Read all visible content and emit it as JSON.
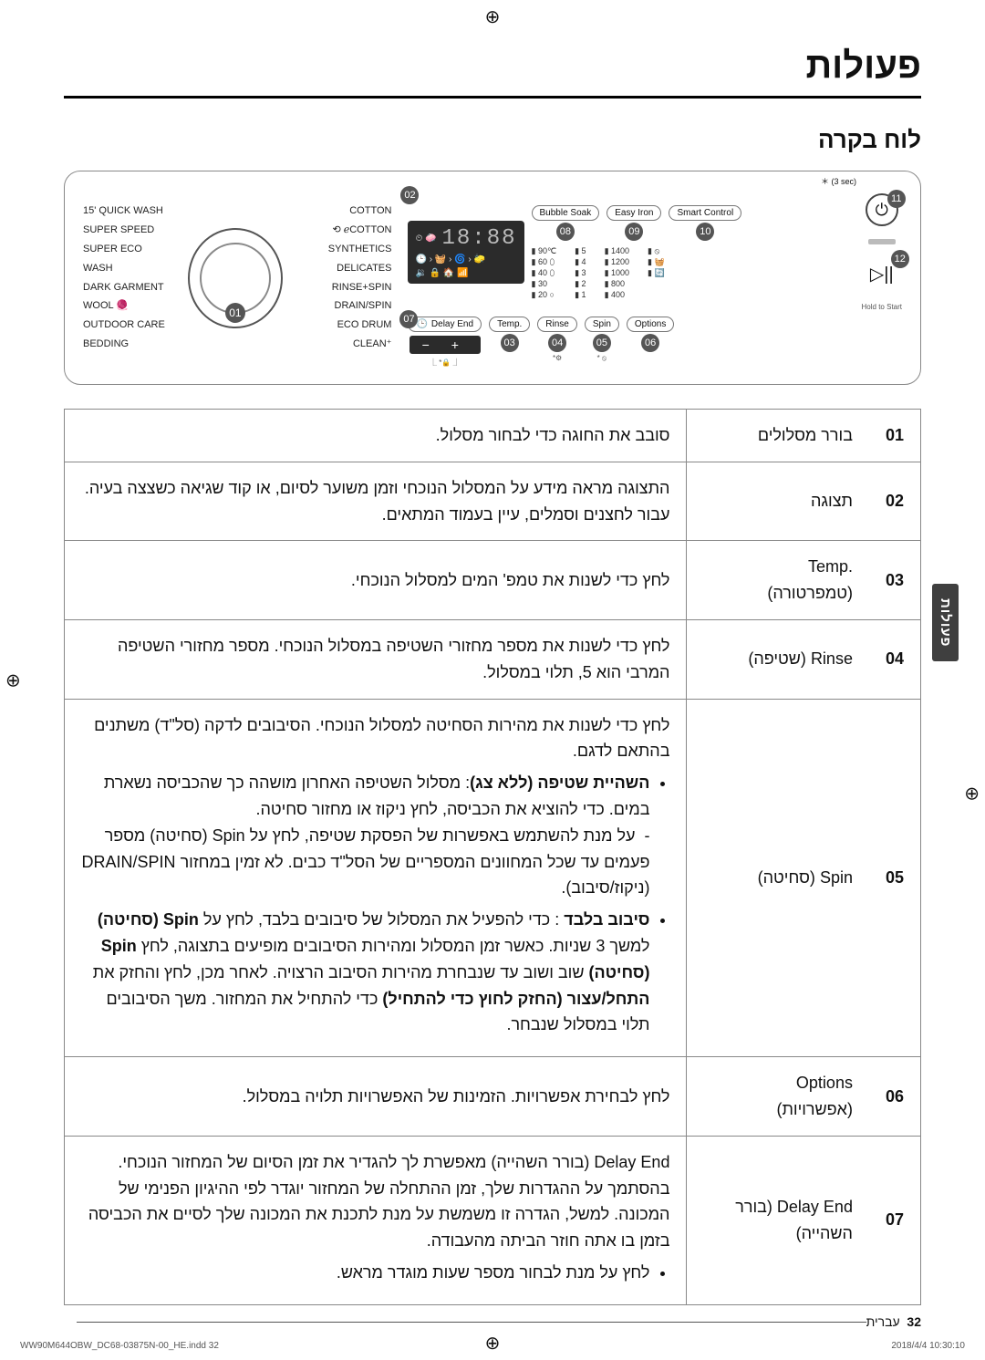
{
  "page": {
    "title": "פעולות",
    "section": "לוח בקרה",
    "side_tab": "פעולות",
    "footer_page": "32",
    "footer_lang": "עברית",
    "foot_file": "WW90M644OBW_DC68-03875N-00_HE.indd   32",
    "foot_date": "2018/4/4   10:30:10"
  },
  "panel": {
    "star_note": "＊ (3 sec)",
    "dial_badge": "01",
    "left_items": [
      "15' QUICK WASH",
      "SUPER SPEED",
      "SUPER ECO WASH",
      "DARK GARMENT",
      "WOOL 🧶",
      "OUTDOOR CARE",
      "BEDDING"
    ],
    "right_items": [
      "COTTON",
      "⟲ ℯCOTTON",
      "SYNTHETICS",
      "DELICATES",
      "RINSE+SPIN",
      "DRAIN/SPIN",
      "ECO DRUM CLEAN⁺"
    ],
    "screen_icons": "⏲ 🧼",
    "screen_time": "18:88",
    "screen_row2": "🕒 › 🧺 › 🌀 › 🧽",
    "screen_row3": "🔉 🔒 🏠 📶",
    "top_pills": [
      {
        "text": "Bubble Soak"
      },
      {
        "text": "Easy Iron"
      },
      {
        "text": "Smart Control"
      }
    ],
    "top_badges": [
      "08",
      "09",
      "10"
    ],
    "grid": {
      "c1": [
        "90℃",
        "60 ⬯",
        "40 ⬯",
        "30",
        "20 ○"
      ],
      "c2": [
        "5",
        "4",
        "3",
        "2",
        "1"
      ],
      "c3": [
        "1400",
        "1200",
        "1000",
        "800",
        "400"
      ],
      "c4": [
        "⦸",
        "🧺",
        "🔄"
      ]
    },
    "delay": {
      "label": "Delay End",
      "badge": "07",
      "pm": "− +"
    },
    "bottom_pills": [
      {
        "text": "Temp.",
        "badge": "03"
      },
      {
        "text": "Rinse",
        "badge": "04"
      },
      {
        "text": "Spin",
        "badge": "05"
      },
      {
        "text": "Options",
        "badge": "06"
      }
    ],
    "power_badge": "11",
    "play_badge": "12",
    "hold_label": "Hold to Start",
    "lock_note": "⎿ *🔒 ⏌",
    "spin_note": "* ⦸"
  },
  "table": [
    {
      "num": "01",
      "label": "בורר מסלולים",
      "desc_html": "סובב את החוגה כדי לבחור מסלול."
    },
    {
      "num": "02",
      "label": "תצוגה",
      "desc_html": "התצוגה מראה מידע על המסלול הנוכחי וזמן משוער לסיום, או קוד שגיאה כשצצה בעיה.<br>עבור לחצנים וסמלים, עיין בעמוד המתאים."
    },
    {
      "num": "03",
      "label": "<span class='en'>Temp.</span><br>(טמפרטורה)",
      "desc_html": "לחץ כדי לשנות את טמפ' המים למסלול הנוכחי."
    },
    {
      "num": "04",
      "label": "<span class='en'>Rinse</span> (שטיפה)",
      "desc_html": "לחץ כדי לשנות את מספר מחזורי השטיפה במסלול הנוכחי. מספר מחזורי השטיפה המרבי הוא 5, תלוי במסלול."
    },
    {
      "num": "05",
      "label": "<span class='en'>Spin</span> (סחיטה)",
      "desc_html": "לחץ כדי לשנות את מהירות הסחיטה למסלול הנוכחי. הסיבובים לדקה (סל\"ד) משתנים בהתאם לדגם.<ul><li><span class='bold'>השהיית שטיפה (ללא צג)</span>: מסלול השטיפה האחרון מושהה כך שהכביסה נשארת במים. כדי להוציא את הכביסה, לחץ ניקוז או מחזור סחיטה.<br>- &nbsp;על מנת להשתמש באפשרות של הפסקת שטיפה, לחץ על Spin (סחיטה) מספר פעמים עד שכל המחוונים המספריים של הסל\"ד כבים. לא זמין במחזור DRAIN/SPIN (ניקוז/סיבוב).</li><li><span class='bold'>סיבוב בלבד</span> : כדי להפעיל את המסלול של סיבובים בלבד, לחץ על <span class='bold'>Spin (סחיטה)</span> למשך 3 שניות. כאשר זמן המסלול ומהירות הסיבובים מופיעים בתצוגה, לחץ <span class='bold'>Spin (סחיטה)</span> שוב ושוב עד שנבחרת מהירות הסיבוב הרצויה. לאחר מכן, לחץ והחזק את <span class='bold'>התחל/עצור (החזק לחוץ כדי להתחיל)</span> כדי להתחיל את המחזור. משך הסיבובים תלוי במסלול שנבחר.</li></ul>"
    },
    {
      "num": "06",
      "label": "<span class='en'>Options</span><br>(אפשרויות)",
      "desc_html": "לחץ לבחירת אפשרויות. הזמינות של האפשרויות תלויה במסלול."
    },
    {
      "num": "07",
      "label": "<span class='en'>Delay End</span> (בורר השהייה)",
      "desc_html": "Delay End (בורר השהייה) מאפשרת לך להגדיר את זמן הסיום של המחזור הנוכחי. בהסתמך על ההגדרות שלך, זמן ההתחלה של המחזור יוגדר לפי ההיגיון הפנימי של המכונה. למשל, הגדרה זו משמשת על מנת לתכנת את המכונה שלך לסיים את הכביסה בזמן בו אתה חוזר הביתה מהעבודה.<ul><li>לחץ על מנת לבחור מספר שעות מוגדר מראש.</li></ul>"
    }
  ]
}
